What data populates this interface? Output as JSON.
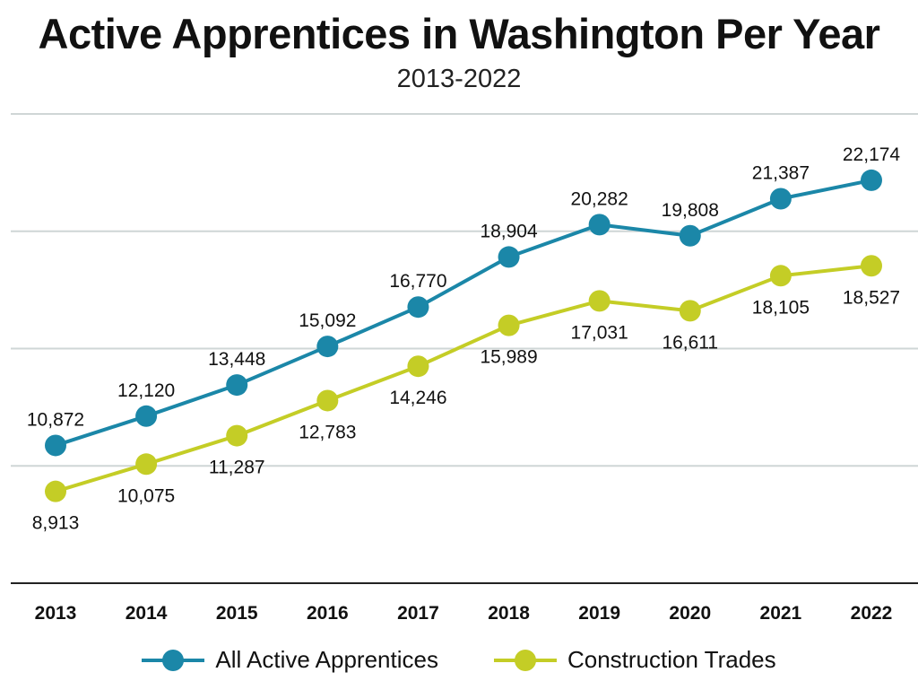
{
  "chart_data": {
    "type": "line",
    "title": "Active Apprentices in Washington Per Year",
    "subtitle": "2013-2022",
    "categories": [
      "2013",
      "2014",
      "2015",
      "2016",
      "2017",
      "2018",
      "2019",
      "2020",
      "2021",
      "2022"
    ],
    "ylim": [
      5000,
      25000
    ],
    "gridlines": [
      5000,
      10000,
      15000,
      20000,
      25000
    ],
    "series": [
      {
        "name": "All Active Apprentices",
        "color": "#1b87a8",
        "values": [
          10872,
          12120,
          13448,
          15092,
          16770,
          18904,
          20282,
          19808,
          21387,
          22174
        ],
        "labels": [
          "10,872",
          "12,120",
          "13,448",
          "15,092",
          "16,770",
          "18,904",
          "20,282",
          "19,808",
          "21,387",
          "22,174"
        ],
        "label_position": "above"
      },
      {
        "name": "Construction Trades",
        "color": "#c4cd26",
        "values": [
          8913,
          10075,
          11287,
          12783,
          14246,
          15989,
          17031,
          16611,
          18105,
          18527
        ],
        "labels": [
          "8,913",
          "10,075",
          "11,287",
          "12,783",
          "14,246",
          "15,989",
          "17,031",
          "16,611",
          "18,105",
          "18,527"
        ],
        "label_position": "below"
      }
    ],
    "legend_position": "bottom"
  }
}
